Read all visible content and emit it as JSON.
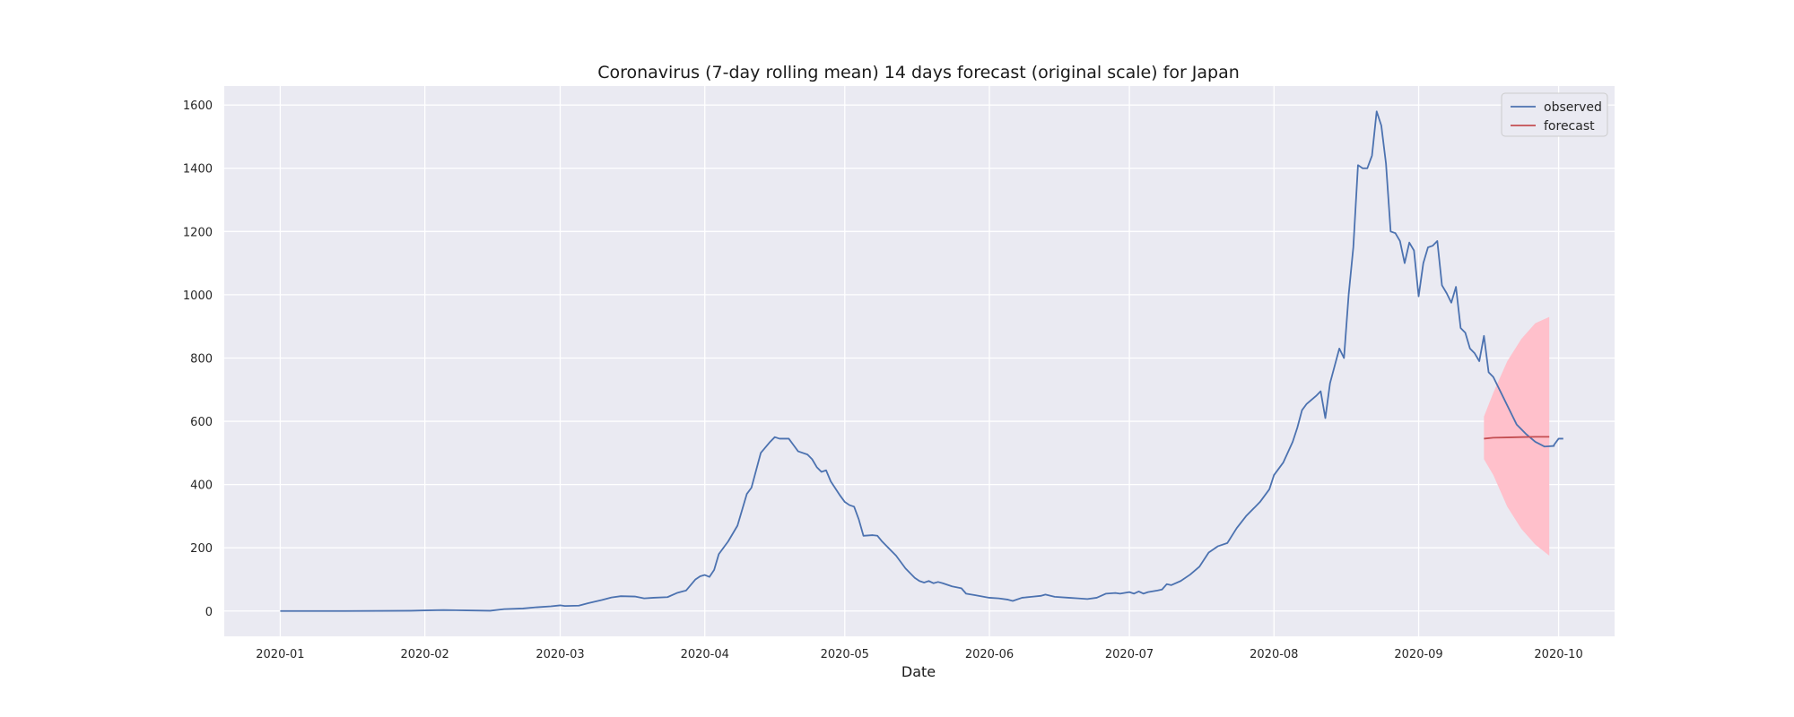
{
  "chart_data": {
    "type": "line",
    "title": "Coronavirus (7-day rolling mean) 14 days forecast (original scale) for Japan",
    "xlabel": "Date",
    "ylabel": "",
    "x_axis": {
      "type": "date",
      "range": [
        "2019-12-20",
        "2020-10-13"
      ],
      "ticks": [
        "2020-01-01",
        "2020-02-01",
        "2020-03-01",
        "2020-04-01",
        "2020-05-01",
        "2020-06-01",
        "2020-07-01",
        "2020-08-01",
        "2020-09-01",
        "2020-10-01"
      ],
      "tick_labels": [
        "2020-01",
        "2020-02",
        "2020-03",
        "2020-04",
        "2020-05",
        "2020-06",
        "2020-07",
        "2020-08",
        "2020-09",
        "2020-10"
      ]
    },
    "y_axis": {
      "range": [
        -80,
        1660
      ],
      "ticks": [
        0,
        200,
        400,
        600,
        800,
        1000,
        1200,
        1400,
        1600
      ]
    },
    "grid": true,
    "legend_position": "top-right",
    "legend": [
      "observed",
      "forecast"
    ],
    "colors": {
      "background": "#eaeaf2",
      "grid": "#ffffff",
      "observed": "#4c72b0",
      "forecast": "#c44e52",
      "interval": "#ffc0cb"
    },
    "series": [
      {
        "name": "observed",
        "points": [
          [
            "2020-01-01",
            0
          ],
          [
            "2020-01-15",
            0
          ],
          [
            "2020-01-29",
            1
          ],
          [
            "2020-02-01",
            2
          ],
          [
            "2020-02-05",
            3
          ],
          [
            "2020-02-10",
            2
          ],
          [
            "2020-02-15",
            1
          ],
          [
            "2020-02-18",
            6
          ],
          [
            "2020-02-22",
            8
          ],
          [
            "2020-02-25",
            12
          ],
          [
            "2020-02-28",
            15
          ],
          [
            "2020-03-01",
            18
          ],
          [
            "2020-03-02",
            16
          ],
          [
            "2020-03-05",
            17
          ],
          [
            "2020-03-07",
            25
          ],
          [
            "2020-03-10",
            35
          ],
          [
            "2020-03-12",
            43
          ],
          [
            "2020-03-14",
            47
          ],
          [
            "2020-03-17",
            46
          ],
          [
            "2020-03-19",
            40
          ],
          [
            "2020-03-21",
            42
          ],
          [
            "2020-03-24",
            44
          ],
          [
            "2020-03-26",
            57
          ],
          [
            "2020-03-28",
            65
          ],
          [
            "2020-03-30",
            100
          ],
          [
            "2020-03-31",
            110
          ],
          [
            "2020-04-01",
            114
          ],
          [
            "2020-04-02",
            108
          ],
          [
            "2020-04-03",
            130
          ],
          [
            "2020-04-04",
            180
          ],
          [
            "2020-04-06",
            220
          ],
          [
            "2020-04-08",
            270
          ],
          [
            "2020-04-10",
            370
          ],
          [
            "2020-04-11",
            390
          ],
          [
            "2020-04-13",
            500
          ],
          [
            "2020-04-15",
            535
          ],
          [
            "2020-04-16",
            550
          ],
          [
            "2020-04-17",
            545
          ],
          [
            "2020-04-19",
            545
          ],
          [
            "2020-04-20",
            525
          ],
          [
            "2020-04-21",
            505
          ],
          [
            "2020-04-23",
            495
          ],
          [
            "2020-04-24",
            480
          ],
          [
            "2020-04-25",
            455
          ],
          [
            "2020-04-26",
            440
          ],
          [
            "2020-04-27",
            445
          ],
          [
            "2020-04-28",
            410
          ],
          [
            "2020-04-30",
            365
          ],
          [
            "2020-05-01",
            345
          ],
          [
            "2020-05-02",
            335
          ],
          [
            "2020-05-03",
            330
          ],
          [
            "2020-05-04",
            290
          ],
          [
            "2020-05-05",
            238
          ],
          [
            "2020-05-07",
            240
          ],
          [
            "2020-05-08",
            238
          ],
          [
            "2020-05-09",
            220
          ],
          [
            "2020-05-11",
            190
          ],
          [
            "2020-05-12",
            175
          ],
          [
            "2020-05-14",
            135
          ],
          [
            "2020-05-16",
            105
          ],
          [
            "2020-05-17",
            95
          ],
          [
            "2020-05-18",
            90
          ],
          [
            "2020-05-19",
            95
          ],
          [
            "2020-05-20",
            88
          ],
          [
            "2020-05-21",
            92
          ],
          [
            "2020-05-22",
            88
          ],
          [
            "2020-05-24",
            78
          ],
          [
            "2020-05-26",
            72
          ],
          [
            "2020-05-27",
            55
          ],
          [
            "2020-05-29",
            50
          ],
          [
            "2020-06-01",
            42
          ],
          [
            "2020-06-03",
            40
          ],
          [
            "2020-06-05",
            36
          ],
          [
            "2020-06-06",
            32
          ],
          [
            "2020-06-08",
            42
          ],
          [
            "2020-06-10",
            45
          ],
          [
            "2020-06-12",
            48
          ],
          [
            "2020-06-13",
            52
          ],
          [
            "2020-06-15",
            45
          ],
          [
            "2020-06-18",
            42
          ],
          [
            "2020-06-20",
            40
          ],
          [
            "2020-06-22",
            38
          ],
          [
            "2020-06-24",
            42
          ],
          [
            "2020-06-26",
            55
          ],
          [
            "2020-06-28",
            57
          ],
          [
            "2020-06-29",
            55
          ],
          [
            "2020-07-01",
            60
          ],
          [
            "2020-07-02",
            55
          ],
          [
            "2020-07-03",
            62
          ],
          [
            "2020-07-04",
            55
          ],
          [
            "2020-07-05",
            60
          ],
          [
            "2020-07-07",
            65
          ],
          [
            "2020-07-08",
            68
          ],
          [
            "2020-07-09",
            85
          ],
          [
            "2020-07-10",
            82
          ],
          [
            "2020-07-12",
            95
          ],
          [
            "2020-07-14",
            115
          ],
          [
            "2020-07-16",
            140
          ],
          [
            "2020-07-18",
            185
          ],
          [
            "2020-07-20",
            205
          ],
          [
            "2020-07-22",
            215
          ],
          [
            "2020-07-24",
            262
          ],
          [
            "2020-07-26",
            300
          ],
          [
            "2020-07-28",
            330
          ],
          [
            "2020-07-29",
            345
          ],
          [
            "2020-07-31",
            385
          ],
          [
            "2020-08-01",
            430
          ],
          [
            "2020-08-03",
            470
          ],
          [
            "2020-08-05",
            535
          ],
          [
            "2020-08-06",
            580
          ],
          [
            "2020-08-07",
            635
          ],
          [
            "2020-08-08",
            655
          ],
          [
            "2020-08-10",
            680
          ],
          [
            "2020-08-11",
            695
          ],
          [
            "2020-08-12",
            610
          ],
          [
            "2020-08-13",
            720
          ],
          [
            "2020-08-15",
            830
          ],
          [
            "2020-08-16",
            800
          ],
          [
            "2020-08-17",
            1000
          ],
          [
            "2020-08-18",
            1150
          ],
          [
            "2020-08-19",
            1410
          ],
          [
            "2020-08-20",
            1400
          ],
          [
            "2020-08-21",
            1400
          ],
          [
            "2020-08-22",
            1440
          ],
          [
            "2020-08-23",
            1580
          ],
          [
            "2020-08-24",
            1535
          ],
          [
            "2020-08-25",
            1415
          ],
          [
            "2020-08-26",
            1200
          ],
          [
            "2020-08-27",
            1195
          ],
          [
            "2020-08-28",
            1170
          ],
          [
            "2020-08-29",
            1100
          ],
          [
            "2020-08-30",
            1165
          ],
          [
            "2020-08-31",
            1140
          ],
          [
            "2020-09-01",
            995
          ],
          [
            "2020-09-02",
            1100
          ],
          [
            "2020-09-03",
            1150
          ],
          [
            "2020-09-04",
            1155
          ],
          [
            "2020-09-05",
            1170
          ],
          [
            "2020-09-06",
            1030
          ],
          [
            "2020-09-07",
            1005
          ],
          [
            "2020-09-08",
            975
          ],
          [
            "2020-09-09",
            1025
          ],
          [
            "2020-09-10",
            895
          ],
          [
            "2020-09-11",
            880
          ],
          [
            "2020-09-12",
            830
          ],
          [
            "2020-09-13",
            815
          ],
          [
            "2020-09-14",
            790
          ],
          [
            "2020-09-15",
            870
          ],
          [
            "2020-09-16",
            755
          ],
          [
            "2020-09-17",
            740
          ],
          [
            "2020-09-19",
            680
          ],
          [
            "2020-09-21",
            620
          ],
          [
            "2020-09-22",
            590
          ],
          [
            "2020-09-24",
            560
          ],
          [
            "2020-09-26",
            535
          ],
          [
            "2020-09-28",
            520
          ],
          [
            "2020-09-30",
            522
          ],
          [
            "2020-09-30",
            525
          ],
          [
            "2020-10-01",
            545
          ],
          [
            "2020-10-02",
            545
          ]
        ]
      },
      {
        "name": "forecast",
        "points": [
          [
            "2020-09-15",
            545
          ],
          [
            "2020-09-17",
            548
          ],
          [
            "2020-09-20",
            549
          ],
          [
            "2020-09-23",
            550
          ],
          [
            "2020-09-26",
            551
          ],
          [
            "2020-09-29",
            551
          ]
        ]
      }
    ],
    "interval": {
      "points": [
        [
          "2020-09-15",
          480,
          615
        ],
        [
          "2020-09-17",
          430,
          690
        ],
        [
          "2020-09-20",
          330,
          790
        ],
        [
          "2020-09-23",
          260,
          860
        ],
        [
          "2020-09-26",
          210,
          910
        ],
        [
          "2020-09-29",
          175,
          930
        ]
      ]
    }
  }
}
